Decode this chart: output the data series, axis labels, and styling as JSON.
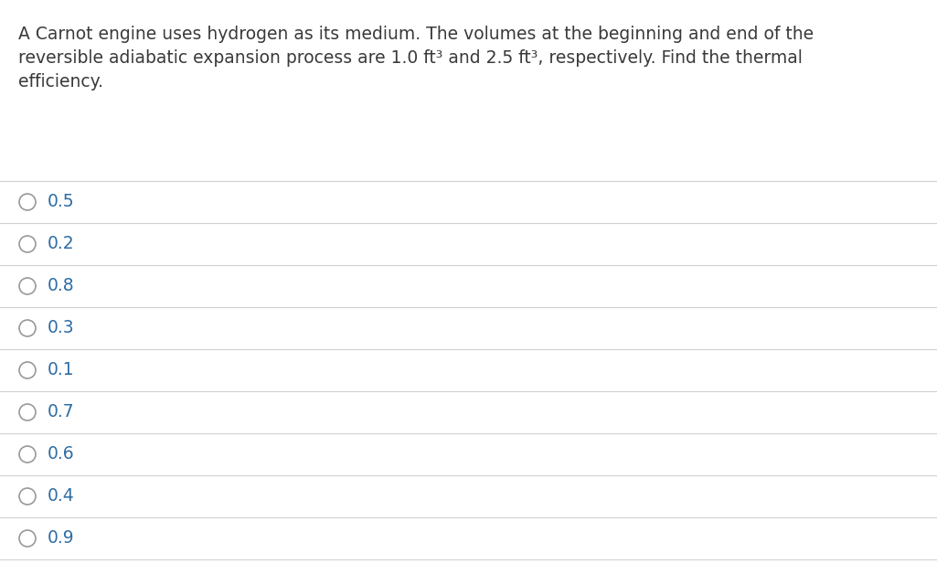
{
  "question_line1": "A Carnot engine uses hydrogen as its medium. The volumes at the beginning and end of the",
  "question_line2": "reversible adiabatic expansion process are 1.0 ft³ and 2.5 ft³, respectively. Find the thermal",
  "question_line3": "efficiency.",
  "options": [
    "0.5",
    "0.2",
    "0.8",
    "0.3",
    "0.1",
    "0.7",
    "0.6",
    "0.4",
    "0.9"
  ],
  "background_color": "#ffffff",
  "text_color": "#3a3a3a",
  "option_text_color": "#2e6da4",
  "circle_edge_color": "#999999",
  "line_color": "#d0d0d0",
  "question_fontsize": 13.5,
  "option_fontsize": 13.5,
  "fig_width": 10.25,
  "fig_height": 6.17,
  "dpi": 100
}
